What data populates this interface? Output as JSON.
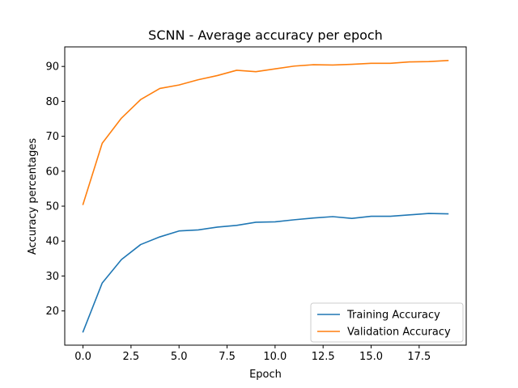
{
  "chart_data": {
    "type": "line",
    "title": "SCNN - Average accuracy per epoch",
    "xlabel": "Epoch",
    "ylabel": "Accuracy percentages",
    "xlim": [
      -0.95,
      19.95
    ],
    "ylim": [
      10.2,
      95.6
    ],
    "xticks": [
      "0.0",
      "2.5",
      "5.0",
      "7.5",
      "10.0",
      "12.5",
      "15.0",
      "17.5"
    ],
    "xtick_values": [
      0,
      2.5,
      5,
      7.5,
      10,
      12.5,
      15,
      17.5
    ],
    "yticks": [
      "20",
      "30",
      "40",
      "50",
      "60",
      "70",
      "80",
      "90"
    ],
    "ytick_values": [
      20,
      30,
      40,
      50,
      60,
      70,
      80,
      90
    ],
    "grid": false,
    "legend_position": "lower-right",
    "x": [
      0,
      1,
      2,
      3,
      4,
      5,
      6,
      7,
      8,
      9,
      10,
      11,
      12,
      13,
      14,
      15,
      16,
      17,
      18,
      19
    ],
    "series": [
      {
        "name": "Training Accuracy",
        "color": "#1f77b4",
        "values": [
          14.0,
          28.0,
          34.7,
          39.0,
          41.2,
          42.9,
          43.2,
          44.0,
          44.5,
          45.4,
          45.5,
          46.1,
          46.6,
          47.0,
          46.5,
          47.1,
          47.1,
          47.5,
          47.9,
          47.8
        ]
      },
      {
        "name": "Validation Accuracy",
        "color": "#ff7f0e",
        "values": [
          50.5,
          68.0,
          75.2,
          80.5,
          83.7,
          84.7,
          86.2,
          87.4,
          88.9,
          88.5,
          89.3,
          90.1,
          90.5,
          90.4,
          90.6,
          90.9,
          90.9,
          91.3,
          91.4,
          91.7
        ]
      }
    ]
  }
}
